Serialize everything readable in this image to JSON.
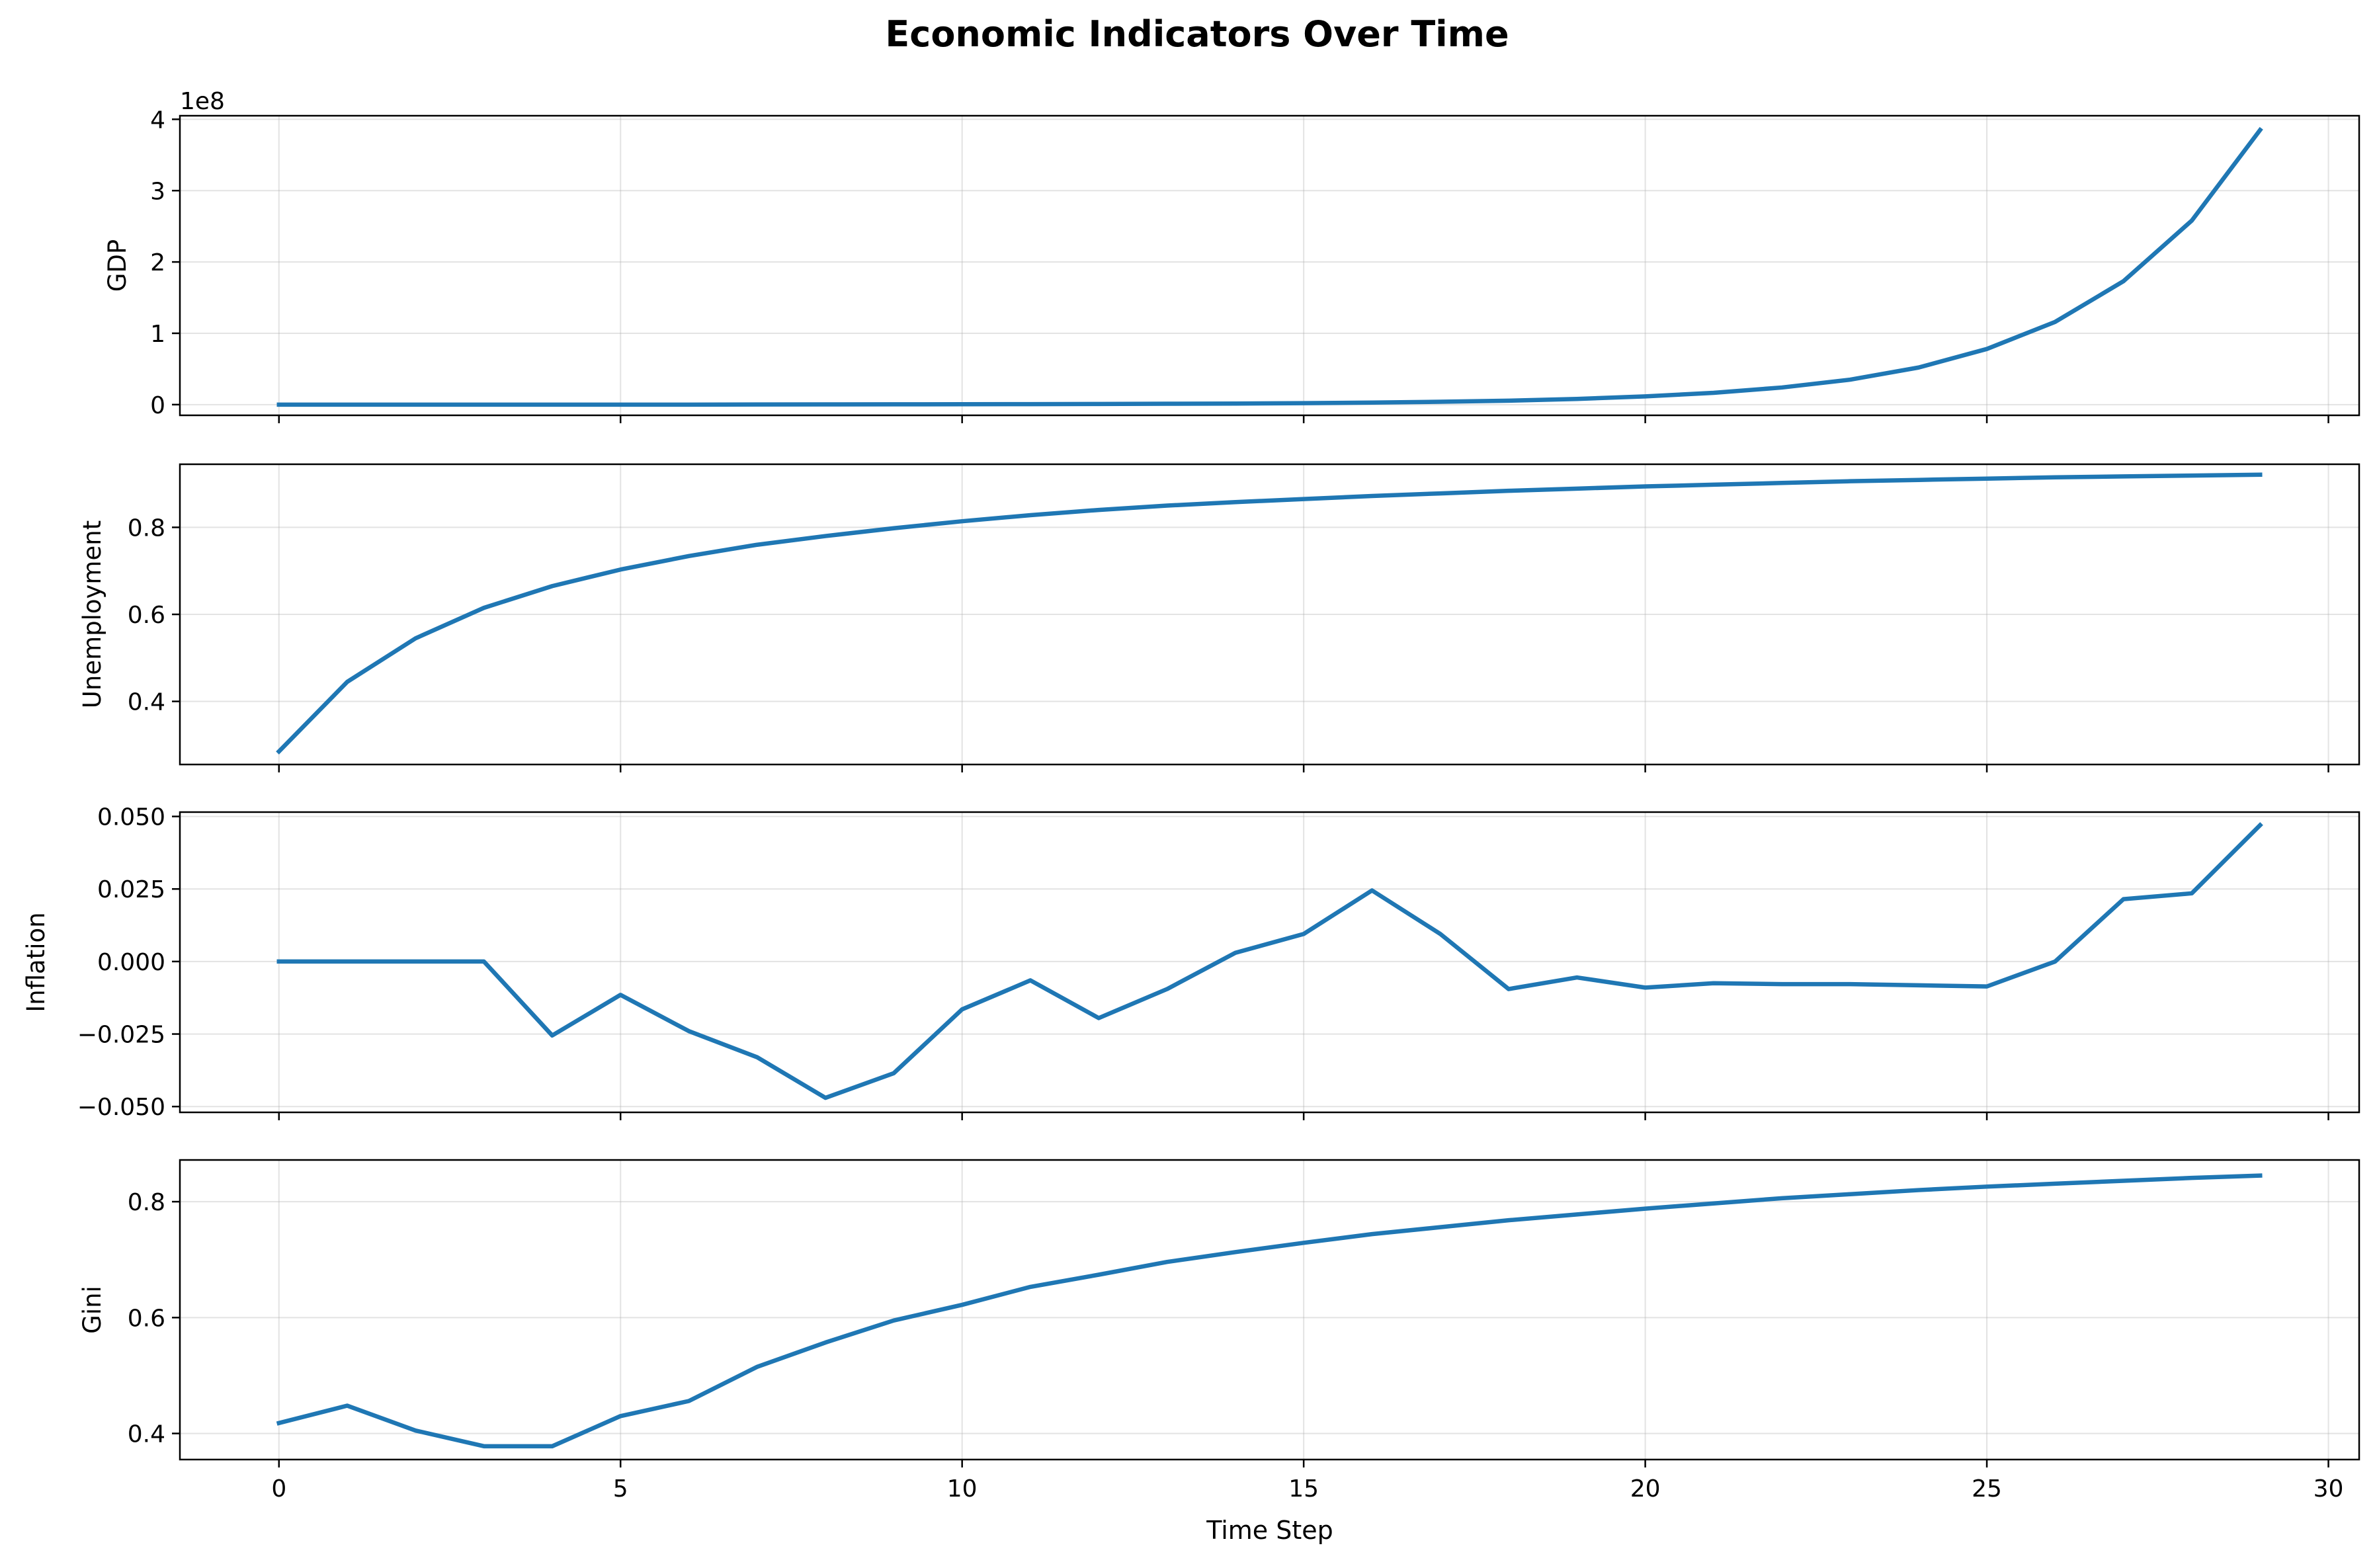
{
  "title": "Economic Indicators Over Time",
  "xlabel": "Time Step",
  "line_color": "#1f77b4",
  "chart_data": {
    "type": "line",
    "xlim": [
      -1.45,
      30.45
    ],
    "xticks": [
      0,
      5,
      10,
      15,
      20,
      25,
      30
    ],
    "grid": true,
    "x": [
      0,
      1,
      2,
      3,
      4,
      5,
      6,
      7,
      8,
      9,
      10,
      11,
      12,
      13,
      14,
      15,
      16,
      17,
      18,
      19,
      20,
      21,
      22,
      23,
      24,
      25,
      26,
      27,
      28,
      29
    ],
    "panels": [
      {
        "ylabel": "GDP",
        "offset_text": "1e8",
        "ylim": [
          -0.15,
          4.05
        ],
        "yticks": [
          0,
          1,
          2,
          3,
          4
        ],
        "ytick_labels": [
          "0",
          "1",
          "2",
          "3",
          "4"
        ],
        "values": [
          0.0,
          0.0,
          0.0,
          0.0,
          0.0,
          0.0,
          0.0,
          0.002,
          0.003,
          0.004,
          0.005,
          0.007,
          0.009,
          0.012,
          0.015,
          0.02,
          0.028,
          0.04,
          0.055,
          0.08,
          0.115,
          0.165,
          0.24,
          0.35,
          0.52,
          0.78,
          1.16,
          1.73,
          2.58,
          3.85
        ]
      },
      {
        "ylabel": "Unemployment",
        "ylim": [
          0.255,
          0.945
        ],
        "yticks": [
          0.4,
          0.6,
          0.8
        ],
        "ytick_labels": [
          "0.4",
          "0.6",
          "0.8"
        ],
        "values": [
          0.285,
          0.445,
          0.545,
          0.615,
          0.665,
          0.703,
          0.734,
          0.76,
          0.78,
          0.798,
          0.814,
          0.828,
          0.84,
          0.85,
          0.858,
          0.865,
          0.872,
          0.878,
          0.884,
          0.889,
          0.894,
          0.898,
          0.902,
          0.906,
          0.909,
          0.912,
          0.915,
          0.917,
          0.919,
          0.921
        ]
      },
      {
        "ylabel": "Inflation",
        "ylim": [
          -0.052,
          0.0515
        ],
        "yticks": [
          -0.05,
          -0.025,
          0.0,
          0.025,
          0.05
        ],
        "ytick_labels": [
          "−0.050",
          "−0.025",
          "0.000",
          "0.025",
          "0.050"
        ],
        "values": [
          0.0,
          0.0,
          0.0,
          0.0,
          -0.0255,
          -0.0115,
          -0.024,
          -0.033,
          -0.047,
          -0.0385,
          -0.0165,
          -0.0065,
          -0.0195,
          -0.0095,
          0.003,
          0.0095,
          0.0245,
          0.0095,
          -0.0095,
          -0.0055,
          -0.009,
          -0.0075,
          -0.0078,
          -0.0078,
          -0.0082,
          -0.0086,
          0.0,
          0.0215,
          0.0235,
          0.047
        ]
      },
      {
        "ylabel": "Gini",
        "ylim": [
          0.355,
          0.872
        ],
        "yticks": [
          0.4,
          0.6,
          0.8
        ],
        "ytick_labels": [
          "0.4",
          "0.6",
          "0.8"
        ],
        "values": [
          0.418,
          0.448,
          0.405,
          0.378,
          0.378,
          0.43,
          0.456,
          0.515,
          0.557,
          0.595,
          0.622,
          0.653,
          0.674,
          0.696,
          0.713,
          0.729,
          0.744,
          0.756,
          0.768,
          0.778,
          0.788,
          0.797,
          0.806,
          0.813,
          0.82,
          0.826,
          0.831,
          0.836,
          0.841,
          0.845
        ]
      }
    ]
  }
}
